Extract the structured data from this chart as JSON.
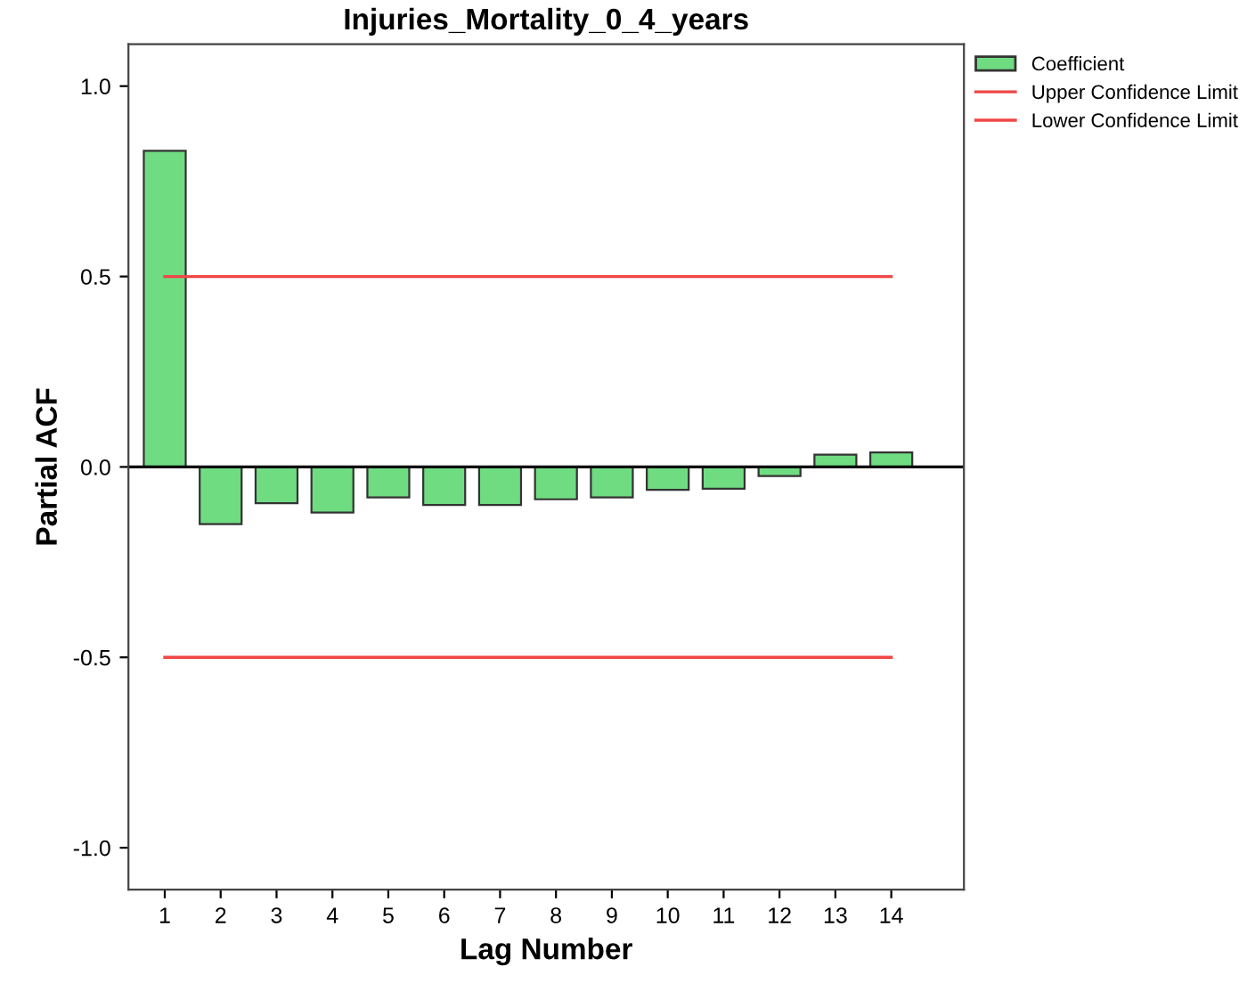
{
  "chart_data": {
    "type": "bar",
    "title": "Injuries_Mortality_0_4_years",
    "xlabel": "Lag Number",
    "ylabel": "Partial ACF",
    "categories": [
      "1",
      "2",
      "3",
      "4",
      "5",
      "6",
      "7",
      "8",
      "9",
      "10",
      "11",
      "12",
      "13",
      "14"
    ],
    "series": [
      {
        "name": "Coefficient",
        "color": "#70dc82",
        "values": [
          0.83,
          -0.15,
          -0.095,
          -0.12,
          -0.08,
          -0.1,
          -0.1,
          -0.085,
          -0.08,
          -0.06,
          -0.057,
          -0.024,
          0.032,
          0.038
        ]
      },
      {
        "name": "Upper Confidence Limit",
        "type": "line",
        "color": "#f04646",
        "values": [
          0.5,
          0.5,
          0.5,
          0.5,
          0.5,
          0.5,
          0.5,
          0.5,
          0.5,
          0.5,
          0.5,
          0.5,
          0.5,
          0.5
        ]
      },
      {
        "name": "Lower Confidence Limit",
        "type": "line",
        "color": "#f04646",
        "values": [
          -0.5,
          -0.5,
          -0.5,
          -0.5,
          -0.5,
          -0.5,
          -0.5,
          -0.5,
          -0.5,
          -0.5,
          -0.5,
          -0.5,
          -0.5,
          -0.5
        ]
      }
    ],
    "ylim": [
      -1.11,
      1.11
    ],
    "yticks": [
      {
        "value": -1.0,
        "label": "-1.0"
      },
      {
        "value": -0.5,
        "label": "-0.5"
      },
      {
        "value": 0.0,
        "label": "0.0"
      },
      {
        "value": 0.5,
        "label": "0.5"
      },
      {
        "value": 1.0,
        "label": "1.0"
      }
    ],
    "legend": "top right",
    "marker": "none",
    "line_style": "solid"
  }
}
